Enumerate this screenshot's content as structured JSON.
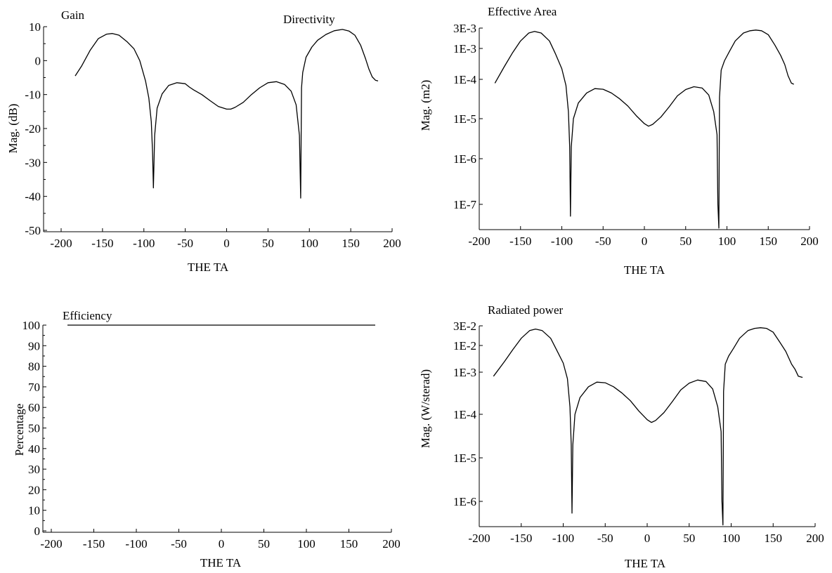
{
  "chart_data": [
    {
      "id": "gain",
      "type": "line",
      "titles": [
        "Gain",
        "Directivity"
      ],
      "xlabel": "THE TA",
      "ylabel": "Mag. (dB)",
      "xlim": [
        -200,
        200
      ],
      "ylim": [
        -50,
        10
      ],
      "yscale": "linear",
      "xticks": [
        -200,
        -150,
        -100,
        -50,
        0,
        50,
        100,
        150,
        200
      ],
      "yticks": [
        -50,
        -40,
        -30,
        -20,
        -10,
        0,
        10
      ],
      "yticklabels": [
        "-50",
        "-40",
        "-30",
        "-20",
        "-10",
        "0",
        "10"
      ],
      "grid": false,
      "series": [
        {
          "x": [
            -183,
            -175,
            -165,
            -155,
            -145,
            -138,
            -130,
            -120,
            -112,
            -105,
            -98,
            -94,
            -91,
            -89.5,
            -88.5,
            -87,
            -84,
            -78,
            -70,
            -60,
            -50,
            -45,
            -40,
            -30,
            -20,
            -10,
            0,
            5,
            10,
            20,
            30,
            40,
            50,
            60,
            70,
            78,
            84,
            88,
            89.5,
            90.5,
            92,
            96,
            103,
            110,
            120,
            130,
            140,
            148,
            155,
            162,
            168,
            172,
            176,
            180,
            183
          ],
          "y": [
            -4.5,
            -1.5,
            3,
            6.5,
            7.8,
            8,
            7.5,
            5.5,
            3.5,
            0,
            -6,
            -11,
            -18,
            -27,
            -37.5,
            -22,
            -14,
            -9.8,
            -7.3,
            -6.5,
            -6.8,
            -7.8,
            -8.6,
            -10,
            -11.8,
            -13.5,
            -14.3,
            -14.3,
            -13.8,
            -12.3,
            -10,
            -8,
            -6.5,
            -6.2,
            -7,
            -9,
            -13,
            -22,
            -40.5,
            -8,
            -3.5,
            1,
            4,
            6,
            7.7,
            8.8,
            9.2,
            8.7,
            7.5,
            4.5,
            0.5,
            -2.5,
            -4.8,
            -5.8,
            -6
          ]
        }
      ]
    },
    {
      "id": "effective-area",
      "type": "line",
      "titles": [
        "Effective Area"
      ],
      "xlabel": "THE TA",
      "ylabel": "Mag. (m2)",
      "xlim": [
        -200,
        200
      ],
      "ylim": [
        1e-08,
        0.003
      ],
      "yscale": "log",
      "xticks": [
        -200,
        -150,
        -100,
        -50,
        0,
        50,
        100,
        150,
        200
      ],
      "yticks": [
        1e-07,
        1e-06,
        1e-05,
        0.0001,
        0.001,
        0.003
      ],
      "yticklabels": [
        "1E-7",
        "1E-6",
        "1E-5",
        "1E-4",
        "1E-3",
        "3E-3"
      ],
      "grid": false,
      "series": [
        {
          "x": [
            -181,
            -170,
            -160,
            -150,
            -140,
            -133,
            -125,
            -115,
            -108,
            -100,
            -95,
            -92,
            -90.5,
            -89.5,
            -88.5,
            -86,
            -80,
            -70,
            -60,
            -50,
            -40,
            -30,
            -20,
            -10,
            0,
            5,
            10,
            20,
            30,
            40,
            50,
            60,
            70,
            78,
            84,
            88,
            89,
            90.2,
            91,
            93,
            97,
            103,
            110,
            120,
            128,
            135,
            142,
            150,
            158,
            165,
            170,
            174,
            178,
            181
          ],
          "y": [
            8e-05,
            0.00025,
            0.0007,
            0.0015,
            0.0023,
            0.0025,
            0.0023,
            0.0015,
            0.0007,
            0.00022,
            7e-05,
            1.5e-05,
            2e-06,
            5e-08,
            2e-06,
            1e-05,
            2.5e-05,
            4.5e-05,
            5.8e-05,
            5.6e-05,
            4.5e-05,
            3.2e-05,
            2.1e-05,
            1.2e-05,
            7.5e-06,
            6.5e-06,
            7.2e-06,
            1.1e-05,
            2e-05,
            3.8e-05,
            5.5e-05,
            6.5e-05,
            6e-05,
            4e-05,
            1.5e-05,
            4e-06,
            1e-07,
            2.5e-08,
            3.5e-05,
            0.0002,
            0.0004,
            0.0008,
            0.0015,
            0.0023,
            0.0026,
            0.0027,
            0.0026,
            0.0021,
            0.0012,
            0.0006,
            0.0003,
            0.00013,
            8e-05,
            7.5e-05
          ]
        }
      ]
    },
    {
      "id": "efficiency",
      "type": "line",
      "titles": [
        "Efficiency"
      ],
      "xlabel": "THE TA",
      "ylabel": "Percentage",
      "xlim": [
        -200,
        200
      ],
      "ylim": [
        0,
        100
      ],
      "yscale": "linear",
      "xticks": [
        -200,
        -150,
        -100,
        -50,
        0,
        50,
        100,
        150,
        200
      ],
      "yticks": [
        0,
        10,
        20,
        30,
        40,
        50,
        60,
        70,
        80,
        90,
        100
      ],
      "yticklabels": [
        "0",
        "10",
        "20",
        "30",
        "40",
        "50",
        "60",
        "70",
        "80",
        "90",
        "100"
      ],
      "grid": false,
      "series": [
        {
          "x": [
            -181,
            181
          ],
          "y": [
            100,
            100
          ]
        }
      ]
    },
    {
      "id": "radiated-power",
      "type": "line",
      "titles": [
        "Radiated power"
      ],
      "xlabel": "THE TA",
      "ylabel": "Mag. (W/sterad)",
      "xlim": [
        -200,
        200
      ],
      "ylim": [
        1e-07,
        0.03
      ],
      "yscale": "log",
      "xticks": [
        -200,
        -150,
        -100,
        -50,
        0,
        50,
        100,
        150,
        200
      ],
      "yticks": [
        1e-06,
        1e-05,
        0.0001,
        0.001,
        0.01,
        0.03
      ],
      "yticklabels": [
        "1E-6",
        "1E-5",
        "1E-4",
        "1E-3",
        "1E-2",
        "3E-2"
      ],
      "grid": false,
      "series": [
        {
          "x": [
            -183,
            -170,
            -160,
            -150,
            -140,
            -133,
            -125,
            -115,
            -108,
            -100,
            -95,
            -92,
            -90.5,
            -89.5,
            -88.5,
            -86,
            -80,
            -70,
            -60,
            -50,
            -40,
            -30,
            -20,
            -10,
            0,
            5,
            10,
            20,
            30,
            40,
            50,
            60,
            70,
            78,
            84,
            88,
            89,
            90.2,
            91,
            93,
            97,
            103,
            110,
            120,
            128,
            135,
            142,
            150,
            158,
            165,
            172,
            176,
            180,
            185
          ],
          "y": [
            0.0008,
            0.0025,
            0.007,
            0.015,
            0.023,
            0.025,
            0.023,
            0.015,
            0.007,
            0.0022,
            0.0007,
            0.00015,
            2e-05,
            5e-07,
            2e-05,
            0.0001,
            0.00025,
            0.00045,
            0.00058,
            0.00056,
            0.00045,
            0.00032,
            0.00021,
            0.00012,
            7.5e-05,
            6.5e-05,
            7.2e-05,
            0.00011,
            0.0002,
            0.00038,
            0.00055,
            0.00065,
            0.0006,
            0.0004,
            0.00015,
            4e-05,
            1e-06,
            2.5e-07,
            0.00035,
            0.002,
            0.004,
            0.008,
            0.015,
            0.023,
            0.026,
            0.027,
            0.026,
            0.021,
            0.012,
            0.006,
            0.002,
            0.0013,
            0.0008,
            0.00075
          ]
        }
      ]
    }
  ]
}
